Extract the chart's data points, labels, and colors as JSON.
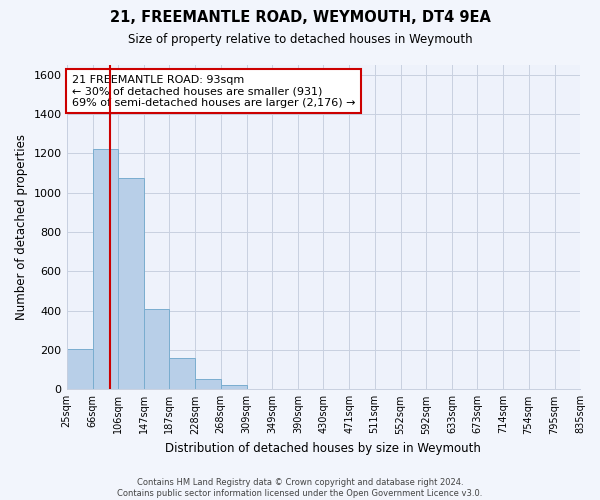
{
  "title": "21, FREEMANTLE ROAD, WEYMOUTH, DT4 9EA",
  "subtitle": "Size of property relative to detached houses in Weymouth",
  "xlabel": "Distribution of detached houses by size in Weymouth",
  "ylabel": "Number of detached properties",
  "bar_edges": [
    25,
    66,
    106,
    147,
    187,
    228,
    268,
    309,
    349,
    390,
    430,
    471,
    511,
    552,
    592,
    633,
    673,
    714,
    754,
    795,
    835
  ],
  "bar_heights": [
    205,
    1225,
    1075,
    410,
    160,
    52,
    22,
    0,
    0,
    0,
    0,
    0,
    0,
    0,
    0,
    0,
    0,
    0,
    0,
    0
  ],
  "bar_color": "#b8cfe8",
  "bar_edge_color": "#7aadcf",
  "property_line_x": 93,
  "property_line_color": "#cc0000",
  "ylim": [
    0,
    1650
  ],
  "yticks": [
    0,
    200,
    400,
    600,
    800,
    1000,
    1200,
    1400,
    1600
  ],
  "annotation_line1": "21 FREEMANTLE ROAD: 93sqm",
  "annotation_line2": "← 30% of detached houses are smaller (931)",
  "annotation_line3": "69% of semi-detached houses are larger (2,176) →",
  "footer_line1": "Contains HM Land Registry data © Crown copyright and database right 2024.",
  "footer_line2": "Contains public sector information licensed under the Open Government Licence v3.0.",
  "background_color": "#f2f5fc",
  "plot_background_color": "#eef2fb",
  "grid_color": "#c8d0e0"
}
